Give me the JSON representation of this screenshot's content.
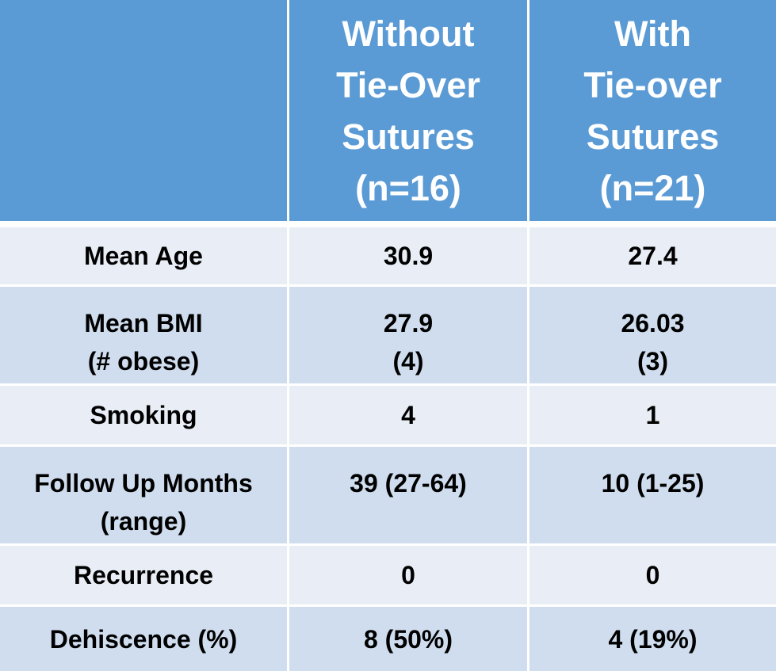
{
  "chart_data": {
    "type": "table",
    "columns": [
      "",
      "Without Tie-Over Sutures (n=16)",
      "With Tie-over Sutures (n=21)"
    ],
    "rows": [
      [
        "Mean Age",
        "30.9",
        "27.4"
      ],
      [
        "Mean BMI (# obese)",
        "27.9 (4)",
        "26.03 (3)"
      ],
      [
        "Smoking",
        "4",
        "1"
      ],
      [
        "Follow Up Months (range)",
        "39 (27-64)",
        "10 (1-25)"
      ],
      [
        "Recurrence",
        "0",
        "0"
      ],
      [
        "Dehiscence (%)",
        "8 (50%)",
        "4 (19%)"
      ]
    ]
  },
  "header": {
    "col1": [
      "Without",
      "Tie-Over",
      "Sutures",
      "(n=16)"
    ],
    "col2": [
      "With",
      "Tie-over",
      "Sutures",
      "(n=21)"
    ]
  },
  "rows": [
    {
      "label": [
        "Mean Age"
      ],
      "without": [
        "30.9"
      ],
      "with": [
        "27.4"
      ]
    },
    {
      "label": [
        "Mean BMI",
        "(# obese)"
      ],
      "without": [
        "27.9",
        "(4)"
      ],
      "with": [
        "26.03",
        "(3)"
      ]
    },
    {
      "label": [
        "Smoking"
      ],
      "without": [
        "4"
      ],
      "with": [
        "1"
      ]
    },
    {
      "label": [
        "Follow Up Months",
        "(range)"
      ],
      "without": [
        "39 (27-64)"
      ],
      "with": [
        "10 (1-25)"
      ]
    },
    {
      "label": [
        "Recurrence"
      ],
      "without": [
        "0"
      ],
      "with": [
        "0"
      ]
    },
    {
      "label": [
        "Dehiscence (%)"
      ],
      "without": [
        "8 (50%)"
      ],
      "with": [
        "4 (19%)"
      ]
    }
  ],
  "colors": {
    "header": "#5b9bd5",
    "row_light": "#e9eef6",
    "row_dark": "#cfddee"
  }
}
